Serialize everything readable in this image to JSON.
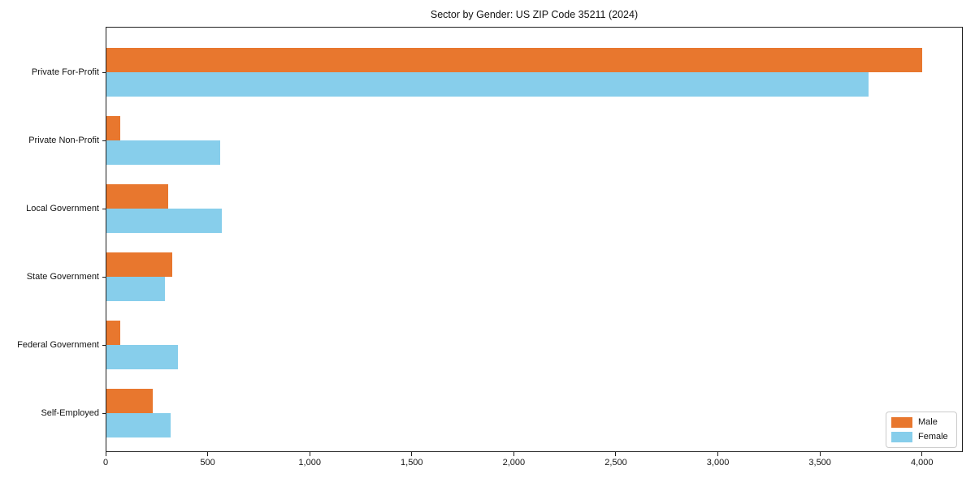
{
  "title": "Sector by Gender: US ZIP Code 35211 (2024)",
  "chart_data": {
    "type": "bar",
    "orientation": "horizontal",
    "title": "Sector by Gender: US ZIP Code 35211 (2024)",
    "categories": [
      "Private For-Profit",
      "Private Non-Profit",
      "Local Government",
      "State Government",
      "Federal Government",
      "Self-Employed"
    ],
    "series": [
      {
        "name": "Male",
        "color": "#e8772e",
        "values": [
          4000,
          70,
          305,
          325,
          70,
          230
        ]
      },
      {
        "name": "Female",
        "color": "#87ceeb",
        "values": [
          3740,
          560,
          570,
          290,
          355,
          320
        ]
      }
    ],
    "x_ticks": [
      0,
      500,
      1000,
      1500,
      2000,
      2500,
      3000,
      3500,
      4000
    ],
    "x_tick_labels": [
      "0",
      "500",
      "1,000",
      "1,500",
      "2,000",
      "2,500",
      "3,000",
      "3,500",
      "4,000"
    ],
    "xlim": [
      0,
      4200
    ],
    "grid": false,
    "legend_position": "lower right",
    "legend_labels": [
      "Male",
      "Female"
    ]
  },
  "colors": {
    "male": "#e8772e",
    "female": "#87ceeb",
    "axis": "#1f1f1f",
    "text": "#141414",
    "legend_border": "#cbcbcb",
    "background": "#ffffff"
  }
}
